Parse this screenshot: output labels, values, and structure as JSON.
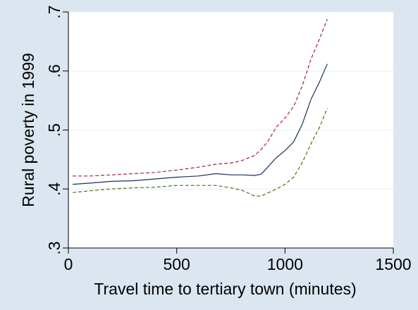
{
  "chart_data": {
    "type": "line",
    "title": "",
    "xlabel": "Travel time to tertiary town (minutes)",
    "ylabel": "Rural poverty in 1999",
    "xlim": [
      0,
      1500
    ],
    "ylim": [
      0.3,
      0.7
    ],
    "xticks": [
      0,
      500,
      1000,
      1500
    ],
    "xtick_labels": [
      "0",
      "500",
      "1000",
      "1500"
    ],
    "yticks": [
      0.3,
      0.4,
      0.5,
      0.6,
      0.7
    ],
    "ytick_labels": [
      ".3",
      ".4",
      ".5",
      ".6",
      ".7"
    ],
    "grid": "horizontal",
    "legend": "none",
    "colors": {
      "background": "#dce6f1",
      "plot_area": "#ffffff",
      "fit": "#1a2f5a",
      "upper_ci": "#a0263a",
      "lower_ci": "#556b14",
      "grid": "#e6eef6"
    },
    "x": [
      20,
      100,
      200,
      300,
      400,
      500,
      600,
      680,
      750,
      800,
      860,
      890,
      920,
      960,
      1000,
      1040,
      1080,
      1120,
      1160,
      1195
    ],
    "series": [
      {
        "role": "upper_ci",
        "style": "dashed",
        "values": [
          0.422,
          0.422,
          0.424,
          0.426,
          0.428,
          0.432,
          0.437,
          0.442,
          0.444,
          0.448,
          0.457,
          0.467,
          0.48,
          0.505,
          0.52,
          0.54,
          0.575,
          0.62,
          0.655,
          0.688
        ]
      },
      {
        "role": "fit",
        "style": "solid",
        "values": [
          0.408,
          0.41,
          0.413,
          0.414,
          0.417,
          0.42,
          0.422,
          0.426,
          0.424,
          0.424,
          0.423,
          0.425,
          0.437,
          0.453,
          0.465,
          0.48,
          0.51,
          0.552,
          0.582,
          0.612
        ]
      },
      {
        "role": "lower_ci",
        "style": "dashed",
        "values": [
          0.394,
          0.397,
          0.4,
          0.402,
          0.403,
          0.406,
          0.406,
          0.406,
          0.402,
          0.398,
          0.388,
          0.388,
          0.393,
          0.4,
          0.408,
          0.42,
          0.445,
          0.477,
          0.505,
          0.537
        ]
      }
    ]
  }
}
